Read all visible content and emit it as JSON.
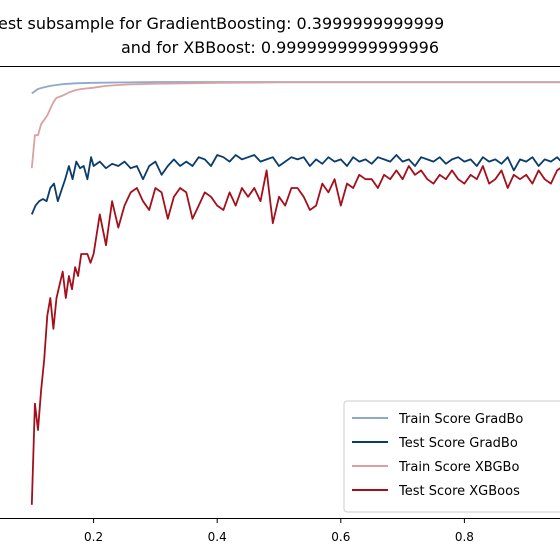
{
  "chart_data": {
    "type": "line",
    "title_line1": "est subsample for GradientBoosting: 0.3999999999999",
    "title_line2": "and for XBBoost: 0.9999999999999996",
    "xlabel": "",
    "ylabel": "",
    "xlim": [
      0.0,
      1.0
    ],
    "ylim": [
      0.0,
      1.0
    ],
    "xticks": [
      0.2,
      0.4,
      0.6,
      0.8
    ],
    "xtick_labels": [
      "0.2",
      "0.4",
      "0.6",
      "0.8"
    ],
    "grid": false,
    "legend_position": "lower-right",
    "series": [
      {
        "name": "Train Score GradBo",
        "color": "#8fa9c9",
        "x": [
          0.1,
          0.11,
          0.12,
          0.13,
          0.14,
          0.15,
          0.17,
          0.2,
          0.25,
          0.3,
          0.35,
          0.4,
          0.5,
          0.6,
          0.7,
          0.8,
          0.9,
          1.0
        ],
        "y": [
          0.965,
          0.975,
          0.979,
          0.982,
          0.984,
          0.986,
          0.988,
          0.989,
          0.99,
          0.991,
          0.991,
          0.991,
          0.991,
          0.991,
          0.991,
          0.991,
          0.991,
          0.991
        ]
      },
      {
        "name": "Test Score  GradBo",
        "color": "#0b3c6e",
        "x": [
          0.1,
          0.106,
          0.112,
          0.118,
          0.124,
          0.13,
          0.136,
          0.142,
          0.148,
          0.154,
          0.16,
          0.166,
          0.172,
          0.178,
          0.184,
          0.19,
          0.196,
          0.2,
          0.21,
          0.22,
          0.23,
          0.24,
          0.25,
          0.26,
          0.27,
          0.28,
          0.29,
          0.3,
          0.31,
          0.32,
          0.33,
          0.34,
          0.35,
          0.36,
          0.37,
          0.38,
          0.39,
          0.4,
          0.41,
          0.42,
          0.43,
          0.44,
          0.45,
          0.46,
          0.47,
          0.48,
          0.49,
          0.5,
          0.51,
          0.52,
          0.53,
          0.54,
          0.55,
          0.56,
          0.57,
          0.58,
          0.59,
          0.6,
          0.61,
          0.62,
          0.63,
          0.64,
          0.65,
          0.66,
          0.67,
          0.68,
          0.69,
          0.7,
          0.71,
          0.72,
          0.73,
          0.74,
          0.75,
          0.76,
          0.77,
          0.78,
          0.79,
          0.8,
          0.81,
          0.82,
          0.83,
          0.84,
          0.85,
          0.86,
          0.87,
          0.88,
          0.89,
          0.9,
          0.91,
          0.92,
          0.93,
          0.94,
          0.95,
          0.96,
          0.97,
          0.98,
          0.99,
          1.0
        ],
        "y": [
          0.69,
          0.71,
          0.72,
          0.725,
          0.72,
          0.75,
          0.76,
          0.72,
          0.745,
          0.77,
          0.8,
          0.77,
          0.81,
          0.795,
          0.8,
          0.77,
          0.82,
          0.8,
          0.81,
          0.795,
          0.805,
          0.8,
          0.81,
          0.795,
          0.8,
          0.77,
          0.8,
          0.81,
          0.78,
          0.8,
          0.815,
          0.8,
          0.81,
          0.8,
          0.82,
          0.815,
          0.8,
          0.825,
          0.82,
          0.81,
          0.825,
          0.815,
          0.82,
          0.825,
          0.81,
          0.815,
          0.82,
          0.8,
          0.81,
          0.82,
          0.815,
          0.82,
          0.8,
          0.815,
          0.805,
          0.82,
          0.81,
          0.815,
          0.8,
          0.82,
          0.81,
          0.815,
          0.805,
          0.82,
          0.815,
          0.81,
          0.825,
          0.81,
          0.815,
          0.8,
          0.82,
          0.815,
          0.81,
          0.82,
          0.805,
          0.815,
          0.82,
          0.81,
          0.815,
          0.8,
          0.82,
          0.81,
          0.815,
          0.805,
          0.82,
          0.79,
          0.815,
          0.81,
          0.82,
          0.8,
          0.815,
          0.81,
          0.82,
          0.805,
          0.815,
          0.81,
          0.82,
          0.81
        ]
      },
      {
        "name": "Train Score XBGBo",
        "color": "#d9a2a2",
        "x": [
          0.1,
          0.105,
          0.11,
          0.115,
          0.12,
          0.125,
          0.13,
          0.135,
          0.14,
          0.15,
          0.16,
          0.17,
          0.18,
          0.2,
          0.22,
          0.25,
          0.3,
          0.35,
          0.4,
          0.5,
          0.6,
          0.7,
          0.8,
          0.9,
          1.0
        ],
        "y": [
          0.795,
          0.87,
          0.87,
          0.895,
          0.905,
          0.915,
          0.93,
          0.945,
          0.955,
          0.96,
          0.967,
          0.972,
          0.975,
          0.978,
          0.982,
          0.985,
          0.987,
          0.988,
          0.989,
          0.99,
          0.99,
          0.99,
          0.99,
          0.99,
          0.99
        ]
      },
      {
        "name": "Test Score XGBoos",
        "color": "#a3101c",
        "x": [
          0.1,
          0.105,
          0.11,
          0.115,
          0.12,
          0.125,
          0.13,
          0.135,
          0.14,
          0.145,
          0.15,
          0.155,
          0.16,
          0.165,
          0.17,
          0.175,
          0.18,
          0.185,
          0.19,
          0.195,
          0.2,
          0.21,
          0.22,
          0.23,
          0.24,
          0.25,
          0.26,
          0.27,
          0.28,
          0.29,
          0.3,
          0.31,
          0.32,
          0.33,
          0.34,
          0.35,
          0.36,
          0.37,
          0.38,
          0.39,
          0.4,
          0.41,
          0.42,
          0.43,
          0.44,
          0.45,
          0.46,
          0.47,
          0.48,
          0.49,
          0.5,
          0.51,
          0.52,
          0.53,
          0.54,
          0.55,
          0.56,
          0.57,
          0.58,
          0.59,
          0.6,
          0.61,
          0.62,
          0.63,
          0.64,
          0.65,
          0.66,
          0.67,
          0.68,
          0.69,
          0.7,
          0.71,
          0.72,
          0.73,
          0.74,
          0.75,
          0.76,
          0.77,
          0.78,
          0.79,
          0.8,
          0.81,
          0.82,
          0.83,
          0.84,
          0.85,
          0.86,
          0.87,
          0.88,
          0.89,
          0.9,
          0.91,
          0.92,
          0.93,
          0.94,
          0.95,
          0.96,
          0.97,
          0.98,
          0.99,
          1.0
        ],
        "y": [
          0.03,
          0.26,
          0.2,
          0.29,
          0.36,
          0.46,
          0.5,
          0.43,
          0.5,
          0.53,
          0.56,
          0.5,
          0.55,
          0.52,
          0.57,
          0.55,
          0.6,
          0.6,
          0.6,
          0.58,
          0.6,
          0.69,
          0.62,
          0.72,
          0.66,
          0.71,
          0.74,
          0.75,
          0.72,
          0.7,
          0.75,
          0.74,
          0.68,
          0.73,
          0.75,
          0.74,
          0.68,
          0.71,
          0.74,
          0.73,
          0.71,
          0.7,
          0.74,
          0.71,
          0.75,
          0.73,
          0.75,
          0.72,
          0.79,
          0.67,
          0.73,
          0.71,
          0.75,
          0.75,
          0.73,
          0.7,
          0.71,
          0.76,
          0.74,
          0.77,
          0.71,
          0.76,
          0.75,
          0.78,
          0.77,
          0.77,
          0.75,
          0.78,
          0.77,
          0.79,
          0.77,
          0.8,
          0.78,
          0.79,
          0.77,
          0.76,
          0.78,
          0.77,
          0.79,
          0.77,
          0.76,
          0.78,
          0.77,
          0.8,
          0.76,
          0.77,
          0.79,
          0.75,
          0.78,
          0.77,
          0.78,
          0.76,
          0.79,
          0.77,
          0.76,
          0.79,
          0.8,
          0.76,
          0.79,
          0.77,
          0.78
        ]
      }
    ]
  }
}
